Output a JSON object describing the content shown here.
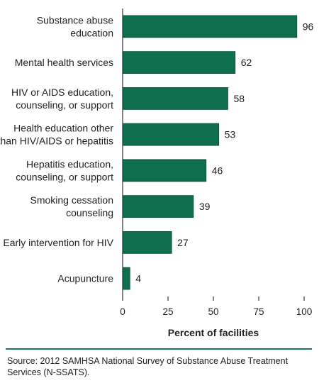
{
  "chart_data": {
    "type": "bar",
    "orientation": "horizontal",
    "categories": [
      "Substance abuse\neducation",
      "Mental health services",
      "HIV or AIDS education,\ncounseling, or support",
      "Health education other\nthan HIV/AIDS or hepatitis",
      "Hepatitis education,\ncounseling, or support",
      "Smoking cessation\ncounseling",
      "Early intervention for HIV",
      "Acupuncture"
    ],
    "values": [
      96,
      62,
      58,
      53,
      46,
      39,
      27,
      4
    ],
    "value_labels": [
      "96",
      "62",
      "58",
      "53",
      "46",
      "39",
      "27",
      "4"
    ],
    "xlabel": "Percent of facilities",
    "ylabel": "",
    "title": "",
    "xlim": [
      0,
      100
    ],
    "xticks": [
      0,
      25,
      50,
      75,
      100
    ],
    "grid": false,
    "bar_color": "#0e6e4d",
    "bar_stroke": "#0a4f37"
  },
  "footer": {
    "source": "Source: 2012 SAMHSA National Survey of Substance Abuse Treatment Services (N-SSATS).",
    "rule_color": "#1b7a5a"
  }
}
